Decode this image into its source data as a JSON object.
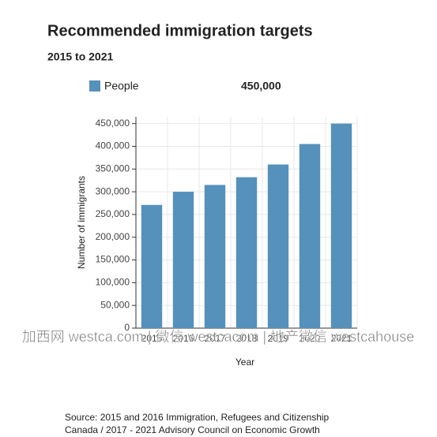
{
  "chart_data": {
    "type": "bar",
    "title": "Recommended immigration targets",
    "subtitle": "2015 to 2021",
    "legend_name": "People",
    "legend_value_label": "450,000",
    "y_label": "Number of immigrants",
    "x_label": "Year",
    "categories": [
      "2015",
      "2016",
      "2017",
      "2018",
      "2019",
      "2020",
      "2021"
    ],
    "values": [
      271000,
      300000,
      315000,
      332000,
      360000,
      405000,
      450000
    ],
    "color": "#5591bb",
    "ylim": [
      0,
      465000
    ],
    "yticks": [
      {
        "value": 0,
        "label": "0"
      },
      {
        "value": 50000,
        "label": "50,000"
      },
      {
        "value": 100000,
        "label": "100,000"
      },
      {
        "value": 150000,
        "label": "150,000"
      },
      {
        "value": 200000,
        "label": "200,000"
      },
      {
        "value": 250000,
        "label": "250,000"
      },
      {
        "value": 300000,
        "label": "300,000"
      },
      {
        "value": 350000,
        "label": "350,000"
      },
      {
        "value": 400000,
        "label": "400,000"
      },
      {
        "value": 450000,
        "label": "450,000"
      }
    ],
    "grid": true,
    "source": [
      "Source: 2015 and 2016 Immigration, Refugees and Citizenship",
      "Canada / 2017 - 2021 Advisory Council on Economic Growth"
    ],
    "watermark": "加西网 westca.com | 微信 westcacom | 地产微信 westcahouse"
  }
}
